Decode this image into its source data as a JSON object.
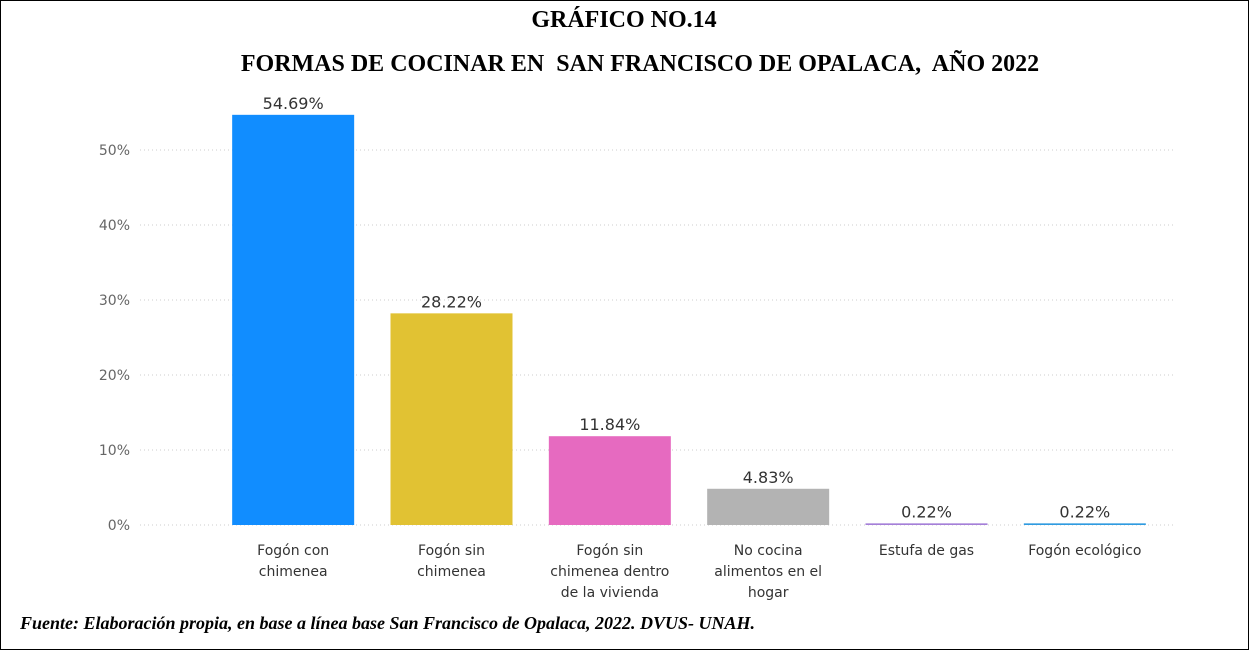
{
  "chart_data": {
    "type": "bar",
    "title": "GRÁFICO NO.14",
    "subtitle": "FORMAS DE COCINAR EN  SAN FRANCISCO DE OPALACA,  AÑO 2022",
    "categories": [
      "Fogón con\nchimenea",
      "Fogón sin\nchimenea",
      "Fogón sin\nchimenea dentro\nde la vivienda",
      "No cocina\nalimentos en el\nhogar",
      "Estufa de gas",
      "Fogón ecológico"
    ],
    "values": [
      54.69,
      28.22,
      11.84,
      4.83,
      0.22,
      0.22
    ],
    "value_labels": [
      "54.69%",
      "28.22%",
      "11.84%",
      "4.83%",
      "0.22%",
      "0.22%"
    ],
    "colors": [
      "#118dff",
      "#e1c233",
      "#e66ac0",
      "#b3b3b3",
      "#a57fd8",
      "#2f9be0"
    ],
    "ylim": [
      0,
      55
    ],
    "yticks": [
      {
        "value": 0,
        "label": "0%"
      },
      {
        "value": 10,
        "label": "10%"
      },
      {
        "value": 20,
        "label": "20%"
      },
      {
        "value": 30,
        "label": "30%"
      },
      {
        "value": 40,
        "label": "40%"
      },
      {
        "value": 50,
        "label": "50%"
      }
    ],
    "grid": true,
    "source": "Fuente: Elaboración propia, en base a línea base San Francisco de Opalaca, 2022. DVUS- UNAH."
  }
}
